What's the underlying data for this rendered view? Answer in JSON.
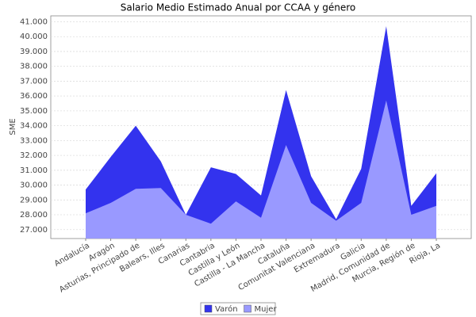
{
  "chart_data": {
    "type": "area",
    "title": "Salario Medio Estimado Anual por CCAA y género",
    "y_label": "SME",
    "categories": [
      "Andalucía",
      "Aragón",
      "Asturias, Principado de",
      "Balears, Illes",
      "Canarias",
      "Cantabria",
      "Castilla y León",
      "Castilla - La Mancha",
      "Cataluña",
      "Comunitat Valenciana",
      "Extremadura",
      "Galicia",
      "Madrid, Comunidad de",
      "Murcia, Región de",
      "Rioja, La"
    ],
    "series": [
      {
        "name": "Varón",
        "color": "#3333ee",
        "values": [
          29700,
          31900,
          34000,
          31600,
          28000,
          31200,
          30750,
          29300,
          36400,
          30600,
          27700,
          31100,
          40700,
          28600,
          30800
        ]
      },
      {
        "name": "Mujer",
        "color": "#9999ff",
        "values": [
          28100,
          28800,
          29750,
          29800,
          28000,
          27400,
          28900,
          27800,
          32700,
          28800,
          27600,
          28800,
          35700,
          28000,
          28600
        ]
      }
    ],
    "ylim": [
      26400,
      41400
    ],
    "yticks": [
      {
        "value": 27000,
        "label": "27.000"
      },
      {
        "value": 28000,
        "label": "28.000"
      },
      {
        "value": 29000,
        "label": "29.000"
      },
      {
        "value": 30000,
        "label": "30.000"
      },
      {
        "value": 31000,
        "label": "31.000"
      },
      {
        "value": 32000,
        "label": "32.000"
      },
      {
        "value": 33000,
        "label": "33.000"
      },
      {
        "value": 34000,
        "label": "34.000"
      },
      {
        "value": 35000,
        "label": "35.000"
      },
      {
        "value": 36000,
        "label": "36.000"
      },
      {
        "value": 37000,
        "label": "37.000"
      },
      {
        "value": 38000,
        "label": "38.000"
      },
      {
        "value": 39000,
        "label": "39.000"
      },
      {
        "value": 40000,
        "label": "40.000"
      },
      {
        "value": 41000,
        "label": "41.000"
      }
    ],
    "grid": true,
    "legend": "bottom"
  }
}
